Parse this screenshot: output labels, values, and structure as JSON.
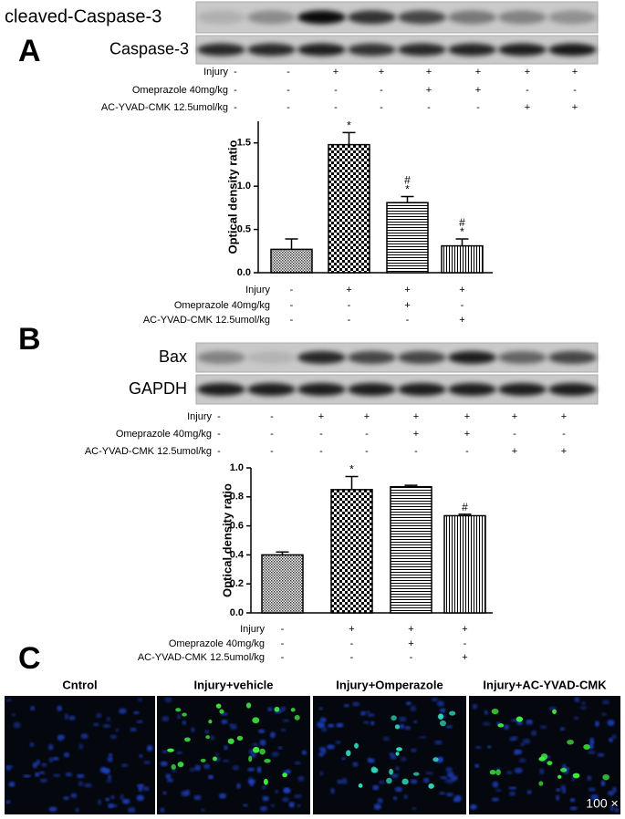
{
  "panel_labels": [
    "A",
    "B",
    "C"
  ],
  "blots": [
    {
      "bands": [
        "cleaved-Caspase-3",
        "Caspase-3"
      ],
      "treatment_rows": [
        {
          "label": "Injury",
          "signs": [
            "-",
            "-",
            "+",
            "+",
            "+",
            "+",
            "+",
            "+"
          ]
        },
        {
          "label": "Omeprazole 40mg/kg",
          "signs": [
            "-",
            "-",
            "-",
            "-",
            "+",
            "+",
            "-",
            "-"
          ]
        },
        {
          "label": "AC-YVAD-CMK 12.5umol/kg",
          "signs": [
            "-",
            "-",
            "-",
            "-",
            "-",
            "-",
            "+",
            "+"
          ]
        }
      ]
    },
    {
      "bands": [
        "Bax",
        "GAPDH"
      ],
      "treatment_rows": [
        {
          "label": "Injury",
          "signs": [
            "-",
            "-",
            "+",
            "+",
            "+",
            "+",
            "+",
            "+"
          ]
        },
        {
          "label": "Omeprazole 40mg/kg",
          "signs": [
            "-",
            "-",
            "-",
            "-",
            "+",
            "+",
            "-",
            "-"
          ]
        },
        {
          "label": "AC-YVAD-CMK 12.5umol/kg",
          "signs": [
            "-",
            "-",
            "-",
            "-",
            "-",
            "-",
            "+",
            "+"
          ]
        }
      ]
    }
  ],
  "chart_data": [
    {
      "type": "bar",
      "y_label": "Optical density ratio",
      "values": [
        0.27,
        1.48,
        0.81,
        0.31
      ],
      "errors": [
        0.12,
        0.14,
        0.07,
        0.08
      ],
      "patterns": [
        "dots",
        "checker",
        "horizontal",
        "vertical"
      ],
      "annotations": [
        [],
        [
          "*"
        ],
        [
          "#",
          "*"
        ],
        [
          "#",
          "*"
        ]
      ],
      "ylim": [
        0,
        1.75
      ],
      "yticks": [
        {
          "value": 0,
          "label": "0.0"
        },
        0.5,
        {
          "value": 1,
          "label": "1.0"
        },
        1.5
      ],
      "treatment_rows": [
        {
          "label": "Injury",
          "signs": [
            "-",
            "+",
            "+",
            "+"
          ]
        },
        {
          "label": "Omeprazole  40mg/kg",
          "signs": [
            "-",
            "-",
            "+",
            "-"
          ]
        },
        {
          "label": "AC-YVAD-CMK  12.5umol/kg",
          "signs": [
            "-",
            "-",
            "-",
            "+"
          ]
        }
      ]
    },
    {
      "type": "bar",
      "y_label": "Optical density ratio",
      "values": [
        0.4,
        0.85,
        0.87,
        0.67
      ],
      "errors": [
        0.02,
        0.09,
        0.01,
        0.01
      ],
      "patterns": [
        "dots",
        "checker",
        "horizontal",
        "vertical"
      ],
      "annotations": [
        [],
        [
          "*"
        ],
        [],
        [
          "#"
        ]
      ],
      "ylim": [
        0,
        1.0
      ],
      "yticks": [
        {
          "value": 0,
          "label": "0.0"
        },
        0.2,
        0.4,
        0.6,
        0.8,
        {
          "value": 1,
          "label": "1.0"
        }
      ],
      "treatment_rows": [
        {
          "label": "Injury",
          "signs": [
            "-",
            "+",
            "+",
            "+"
          ]
        },
        {
          "label": "Omeprazole  40mg/kg",
          "signs": [
            "-",
            "-",
            "+",
            "-"
          ]
        },
        {
          "label": "AC-YVAD-CMK  12.5umol/kg",
          "signs": [
            "-",
            "-",
            "-",
            "+"
          ]
        }
      ]
    }
  ],
  "micrographs": {
    "titles": [
      "Cntrol",
      "Injury+vehicle",
      "Injury+Omperazole",
      "Injury+AC-YVAD-CMK"
    ],
    "magnification": "100 ×"
  }
}
